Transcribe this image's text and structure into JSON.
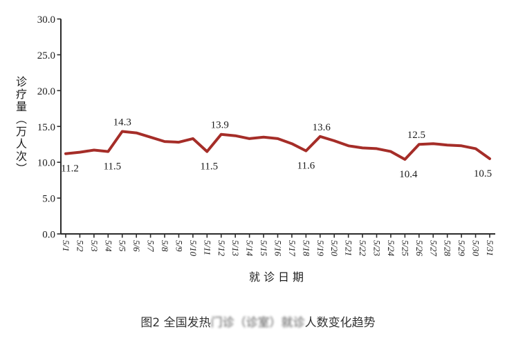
{
  "chart_data": {
    "type": "line",
    "caption": {
      "prefix": "图2 全国发热",
      "blurred": "门诊（诊室）就诊",
      "suffix": "人数变化趋势"
    },
    "xlabel": "就诊日期",
    "ylabel": "诊疗量（万人次）",
    "x": [
      "5/1",
      "5/2",
      "5/3",
      "5/4",
      "5/5",
      "5/6",
      "5/7",
      "5/8",
      "5/9",
      "5/10",
      "5/11",
      "5/12",
      "5/13",
      "5/14",
      "5/15",
      "5/16",
      "5/17",
      "5/18",
      "5/19",
      "5/20",
      "5/21",
      "5/22",
      "5/23",
      "5/24",
      "5/25",
      "5/26",
      "5/27",
      "5/28",
      "5/29",
      "5/30",
      "5/31"
    ],
    "values": [
      11.2,
      11.4,
      11.7,
      11.5,
      14.3,
      14.1,
      13.5,
      12.9,
      12.8,
      13.3,
      11.5,
      13.9,
      13.7,
      13.3,
      13.5,
      13.3,
      12.6,
      11.6,
      13.6,
      13.0,
      12.3,
      12.0,
      11.9,
      11.5,
      10.4,
      12.5,
      12.6,
      12.4,
      12.3,
      11.9,
      10.5
    ],
    "ylim": [
      0,
      30
    ],
    "ytick_step": 5,
    "ytick_labels": [
      "0.0",
      "5.0",
      "10.0",
      "15.0",
      "20.0",
      "25.0",
      "30.0"
    ],
    "grid": false,
    "legend": "none",
    "line_color": "#A52D28",
    "axis_color": "#2a2a2a",
    "labeled_points": [
      {
        "index": 0,
        "value": "11.2",
        "position": "below",
        "dx": 6
      },
      {
        "index": 3,
        "value": "11.5",
        "position": "below",
        "dx": 6
      },
      {
        "index": 4,
        "value": "14.3",
        "position": "above",
        "dx": 0
      },
      {
        "index": 10,
        "value": "11.5",
        "position": "below",
        "dx": 3
      },
      {
        "index": 11,
        "value": "13.9",
        "position": "above",
        "dx": -2
      },
      {
        "index": 17,
        "value": "11.6",
        "position": "below",
        "dx": 0
      },
      {
        "index": 18,
        "value": "13.6",
        "position": "above",
        "dx": 2
      },
      {
        "index": 24,
        "value": "10.4",
        "position": "below",
        "dx": 5
      },
      {
        "index": 25,
        "value": "12.5",
        "position": "above",
        "dx": -4
      },
      {
        "index": 30,
        "value": "10.5",
        "position": "below",
        "dx": -10
      }
    ]
  }
}
